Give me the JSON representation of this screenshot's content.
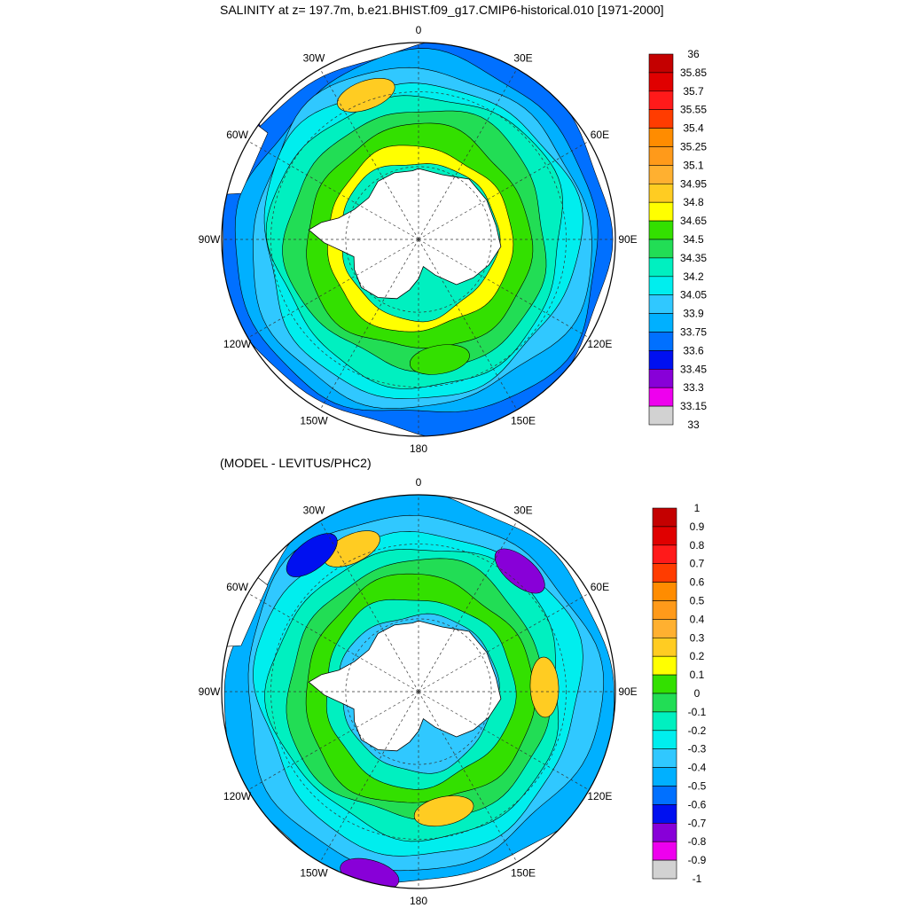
{
  "chart_data": [
    {
      "type": "heatmap",
      "projection": "south-polar-stereographic",
      "title": "SALINITY at z= 197.7m, b.e21.BHIST.f09_g17.CMIP6-historical.010 [1971-2000]",
      "longitude_labels": [
        "0",
        "30E",
        "60E",
        "90E",
        "120E",
        "150E",
        "180",
        "150W",
        "120W",
        "90W",
        "60W",
        "30W"
      ],
      "colorbar": {
        "levels": [
          "36",
          "35.85",
          "35.7",
          "35.55",
          "35.4",
          "35.25",
          "35.1",
          "34.95",
          "34.8",
          "34.65",
          "34.5",
          "34.35",
          "34.2",
          "34.05",
          "33.9",
          "33.75",
          "33.6",
          "33.45",
          "33.3",
          "33.15",
          "33"
        ],
        "colors": [
          "#c40000",
          "#e00000",
          "#ff1a1a",
          "#ff3c00",
          "#ff8c00",
          "#ff9a1a",
          "#ffb030",
          "#ffcc22",
          "#ffff00",
          "#33e000",
          "#22dd55",
          "#00f0c0",
          "#00eeee",
          "#30c8ff",
          "#00b0ff",
          "#0070ff",
          "#0010f0",
          "#8800d8",
          "#ee00ee",
          "#d2d2d2",
          "#6e6e6e"
        ]
      },
      "rings": [
        {
          "r": 0.99,
          "value": "33.75"
        },
        {
          "r": 0.92,
          "value": "33.9"
        },
        {
          "r": 0.86,
          "value": "34.05"
        },
        {
          "r": 0.8,
          "value": "34.2"
        },
        {
          "r": 0.74,
          "value": "34.35"
        },
        {
          "r": 0.66,
          "value": "34.5"
        },
        {
          "r": 0.57,
          "value": "34.65"
        },
        {
          "r": 0.47,
          "value": "34.8"
        },
        {
          "r": 0.4,
          "value": "34.35"
        }
      ],
      "patches": [
        {
          "lon": -20,
          "r": 0.78,
          "value": "34.95"
        },
        {
          "lon": 170,
          "r": 0.62,
          "value": "34.65"
        },
        {
          "lon": -62,
          "r": 1.02,
          "value": "33.6"
        }
      ]
    },
    {
      "type": "heatmap",
      "projection": "south-polar-stereographic",
      "title": "(MODEL - LEVITUS/PHC2)",
      "longitude_labels": [
        "0",
        "30E",
        "60E",
        "90E",
        "120E",
        "150E",
        "180",
        "150W",
        "120W",
        "90W",
        "60W",
        "30W"
      ],
      "colorbar": {
        "levels": [
          "1",
          "0.9",
          "0.8",
          "0.7",
          "0.6",
          "0.5",
          "0.4",
          "0.3",
          "0.2",
          "0.1",
          "0",
          "-0.1",
          "-0.2",
          "-0.3",
          "-0.4",
          "-0.5",
          "-0.6",
          "-0.7",
          "-0.8",
          "-0.9",
          "-1"
        ],
        "colors": [
          "#c40000",
          "#e00000",
          "#ff1a1a",
          "#ff3c00",
          "#ff8c00",
          "#ff9a1a",
          "#ffb030",
          "#ffcc22",
          "#ffff00",
          "#33e000",
          "#22dd55",
          "#00f0c0",
          "#00eeee",
          "#30c8ff",
          "#00b0ff",
          "#0070ff",
          "#0010f0",
          "#8800d8",
          "#ee00ee",
          "#d2d2d2",
          "#6e6e6e"
        ]
      },
      "rings": [
        {
          "r": 0.99,
          "value": "-0.4"
        },
        {
          "r": 0.9,
          "value": "-0.3"
        },
        {
          "r": 0.82,
          "value": "-0.2"
        },
        {
          "r": 0.74,
          "value": "-0.1"
        },
        {
          "r": 0.66,
          "value": "0"
        },
        {
          "r": 0.58,
          "value": "0.1"
        },
        {
          "r": 0.48,
          "value": "-0.1"
        },
        {
          "r": 0.4,
          "value": "-0.3"
        }
      ],
      "patches": [
        {
          "lon": 40,
          "r": 0.8,
          "value": "-0.7"
        },
        {
          "lon": -165,
          "r": 0.96,
          "value": "-0.7"
        },
        {
          "lon": 168,
          "r": 0.62,
          "value": "0.3"
        },
        {
          "lon": 88,
          "r": 0.64,
          "value": "0.3"
        },
        {
          "lon": -25,
          "r": 0.8,
          "value": "0.3"
        },
        {
          "lon": -38,
          "r": 0.88,
          "value": "-0.6"
        }
      ]
    }
  ]
}
